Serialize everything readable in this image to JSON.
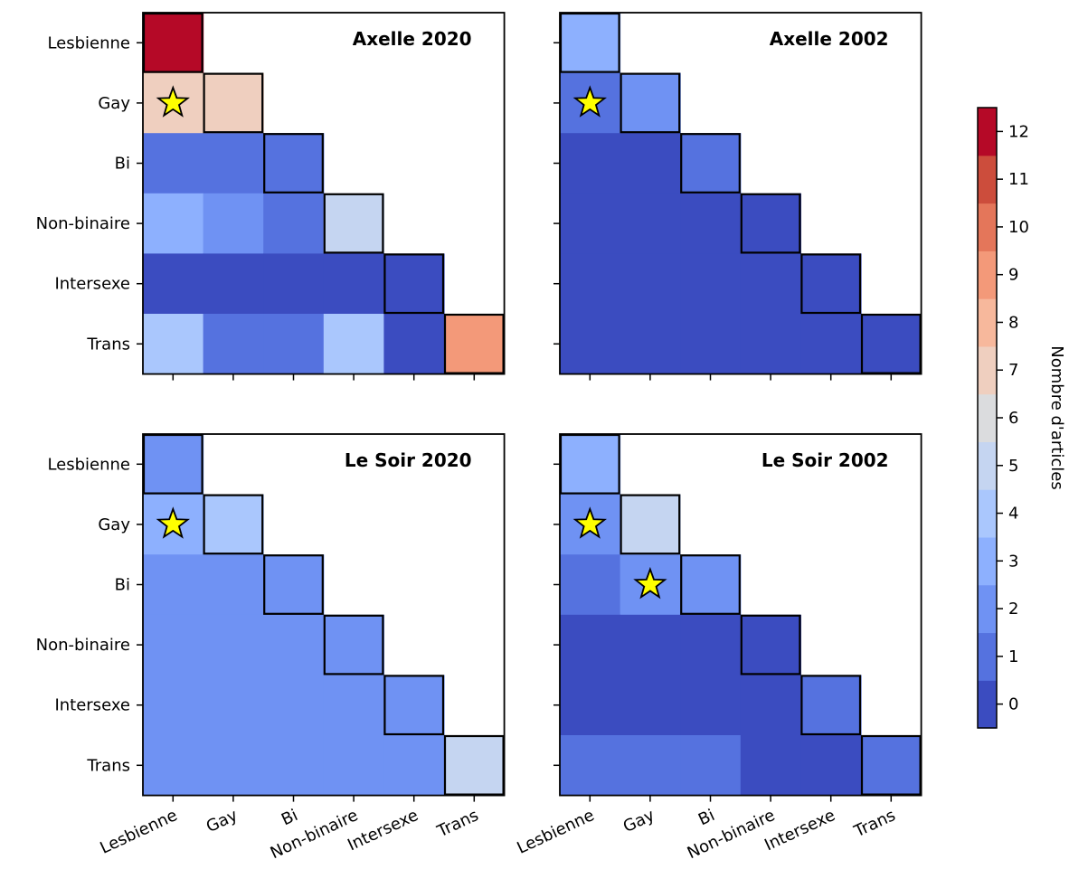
{
  "chart_data": {
    "type": "heatmap",
    "categories": [
      "Lesbienne",
      "Gay",
      "Bi",
      "Non-binaire",
      "Intersexe",
      "Trans"
    ],
    "panels": [
      {
        "title": "Axelle 2020",
        "values": [
          [
            12
          ],
          [
            7,
            7
          ],
          [
            1,
            1,
            1
          ],
          [
            3,
            2,
            1,
            5
          ],
          [
            0,
            0,
            0,
            0,
            0
          ],
          [
            4,
            1,
            1,
            4,
            0,
            9
          ]
        ],
        "stars": [
          [
            1,
            0
          ]
        ]
      },
      {
        "title": "Axelle 2002",
        "values": [
          [
            3
          ],
          [
            1,
            2
          ],
          [
            0,
            0,
            1
          ],
          [
            0,
            0,
            0,
            0
          ],
          [
            0,
            0,
            0,
            0,
            0
          ],
          [
            0,
            0,
            0,
            0,
            0,
            0
          ]
        ],
        "stars": [
          [
            1,
            0
          ]
        ]
      },
      {
        "title": "Le Soir 2020",
        "values": [
          [
            2
          ],
          [
            3,
            4
          ],
          [
            2,
            2,
            2
          ],
          [
            2,
            2,
            2,
            2
          ],
          [
            2,
            2,
            2,
            2,
            2
          ],
          [
            2,
            2,
            2,
            2,
            2,
            5
          ]
        ],
        "stars": [
          [
            1,
            0
          ]
        ]
      },
      {
        "title": "Le Soir 2002",
        "values": [
          [
            3
          ],
          [
            2,
            5
          ],
          [
            1,
            2,
            2
          ],
          [
            0,
            0,
            0,
            0
          ],
          [
            0,
            0,
            0,
            0,
            1
          ],
          [
            1,
            1,
            1,
            0,
            0,
            1
          ]
        ],
        "stars": [
          [
            1,
            0
          ],
          [
            2,
            1
          ]
        ]
      }
    ],
    "colorbar": {
      "label": "Nombre d'articles",
      "ticks": [
        0,
        1,
        2,
        3,
        4,
        5,
        6,
        7,
        8,
        9,
        10,
        11,
        12
      ],
      "range": [
        -0.5,
        12.5
      ],
      "colors": [
        "#3b4cc0",
        "#5572df",
        "#6f92f3",
        "#8db0fe",
        "#aac7fd",
        "#c5d5f1",
        "#dbdcde",
        "#efcfbf",
        "#f7b89c",
        "#f39979",
        "#e4765a",
        "#cc4d3c",
        "#b50927"
      ]
    },
    "star_color": "#ffff00",
    "grid": false
  }
}
